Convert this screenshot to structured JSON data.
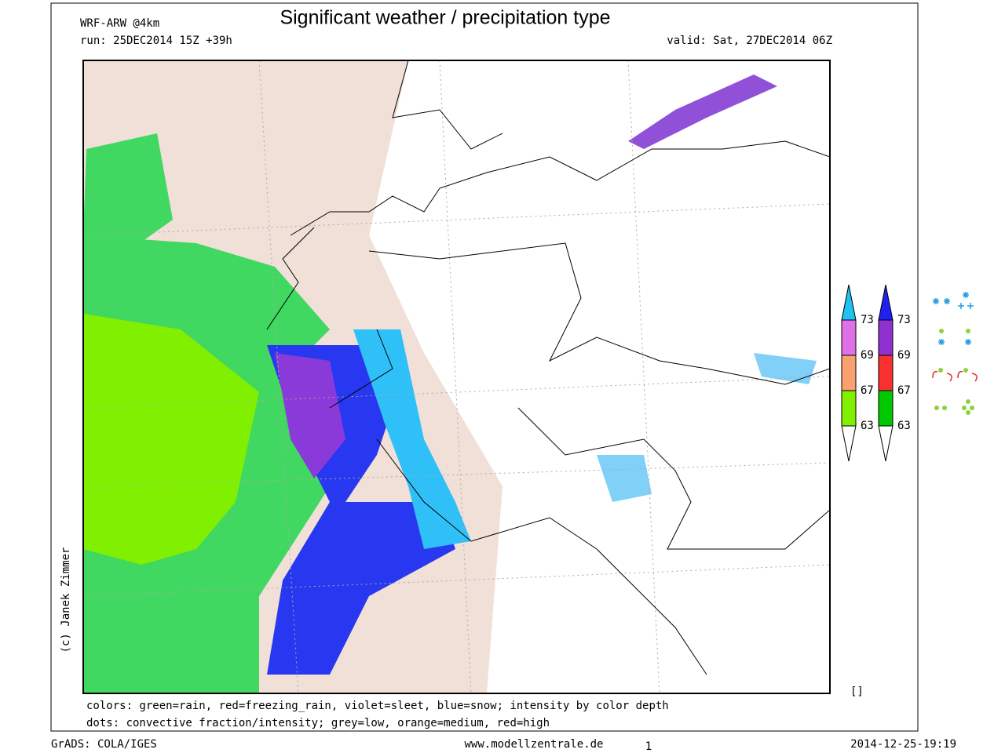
{
  "header": {
    "model": "WRF-ARW @4km",
    "title": "Significant weather / precipitation type",
    "run": "run: 25DEC2014 15Z +39h",
    "valid": "valid: Sat, 27DEC2014 06Z"
  },
  "credit": "(c) Janek Zimmer",
  "notes": [
    "colors: green=rain, red=freezing_rain, violet=sleet, blue=snow; intensity by color depth",
    "dots: convective fraction/intensity;  grey=low, orange=medium, red=high"
  ],
  "legend": [
    {
      "colors": [
        "#20c0f0",
        "#e070e8",
        "#f8a070",
        "#80f000",
        "#ffffff"
      ],
      "labels": [
        73,
        69,
        67,
        63
      ]
    },
    {
      "colors": [
        "#2020f0",
        "#9030d0",
        "#f83030",
        "#00c800",
        "#ffffff"
      ],
      "labels": [
        73,
        69,
        67,
        63
      ]
    }
  ],
  "box_marker": "[]",
  "footer": {
    "left": "GrADS: COLA/IGES",
    "center": "www.modellzentrale.de",
    "page": "1",
    "right": "2014-12-25-19:19"
  }
}
